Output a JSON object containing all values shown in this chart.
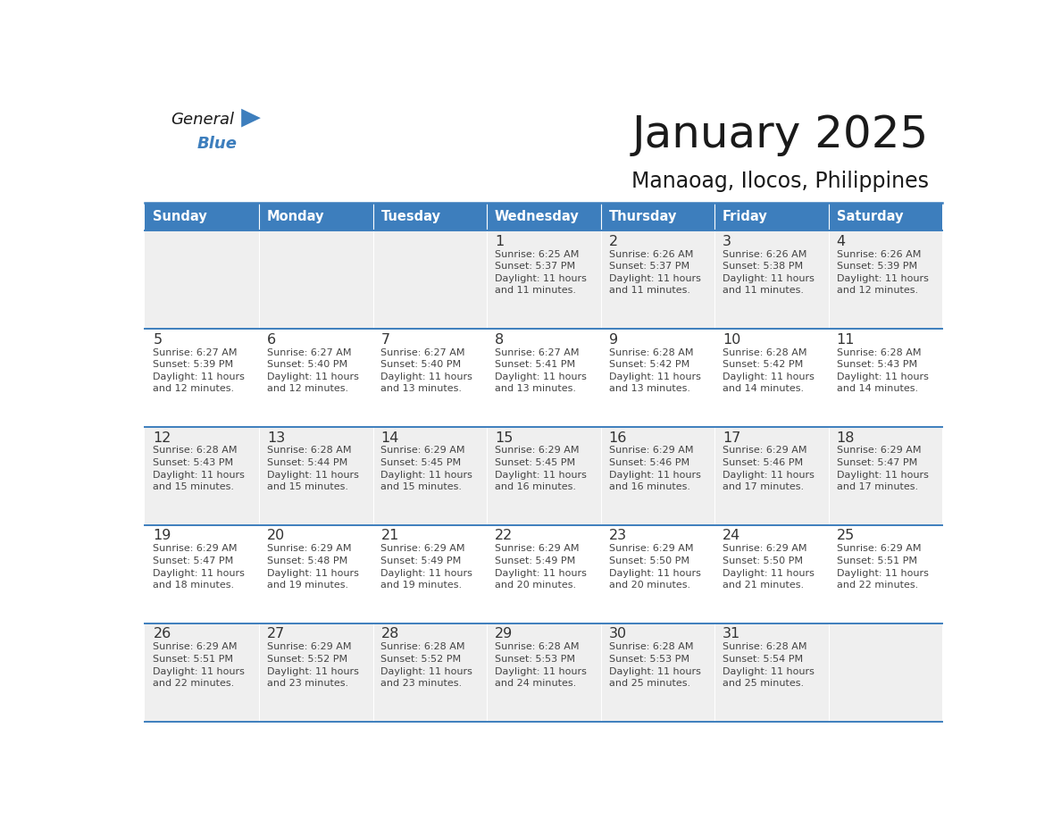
{
  "title": "January 2025",
  "subtitle": "Manaoag, Ilocos, Philippines",
  "header_color": "#3D7EBD",
  "header_text_color": "#FFFFFF",
  "days_of_week": [
    "Sunday",
    "Monday",
    "Tuesday",
    "Wednesday",
    "Thursday",
    "Friday",
    "Saturday"
  ],
  "cell_bg_even": "#EFEFEF",
  "cell_bg_odd": "#FFFFFF",
  "border_color": "#3D7EBD",
  "text_color": "#333333",
  "day_num_color": "#333333",
  "info_text_color": "#444444",
  "calendar": [
    [
      {
        "day": "",
        "info": ""
      },
      {
        "day": "",
        "info": ""
      },
      {
        "day": "",
        "info": ""
      },
      {
        "day": "1",
        "info": "Sunrise: 6:25 AM\nSunset: 5:37 PM\nDaylight: 11 hours\nand 11 minutes."
      },
      {
        "day": "2",
        "info": "Sunrise: 6:26 AM\nSunset: 5:37 PM\nDaylight: 11 hours\nand 11 minutes."
      },
      {
        "day": "3",
        "info": "Sunrise: 6:26 AM\nSunset: 5:38 PM\nDaylight: 11 hours\nand 11 minutes."
      },
      {
        "day": "4",
        "info": "Sunrise: 6:26 AM\nSunset: 5:39 PM\nDaylight: 11 hours\nand 12 minutes."
      }
    ],
    [
      {
        "day": "5",
        "info": "Sunrise: 6:27 AM\nSunset: 5:39 PM\nDaylight: 11 hours\nand 12 minutes."
      },
      {
        "day": "6",
        "info": "Sunrise: 6:27 AM\nSunset: 5:40 PM\nDaylight: 11 hours\nand 12 minutes."
      },
      {
        "day": "7",
        "info": "Sunrise: 6:27 AM\nSunset: 5:40 PM\nDaylight: 11 hours\nand 13 minutes."
      },
      {
        "day": "8",
        "info": "Sunrise: 6:27 AM\nSunset: 5:41 PM\nDaylight: 11 hours\nand 13 minutes."
      },
      {
        "day": "9",
        "info": "Sunrise: 6:28 AM\nSunset: 5:42 PM\nDaylight: 11 hours\nand 13 minutes."
      },
      {
        "day": "10",
        "info": "Sunrise: 6:28 AM\nSunset: 5:42 PM\nDaylight: 11 hours\nand 14 minutes."
      },
      {
        "day": "11",
        "info": "Sunrise: 6:28 AM\nSunset: 5:43 PM\nDaylight: 11 hours\nand 14 minutes."
      }
    ],
    [
      {
        "day": "12",
        "info": "Sunrise: 6:28 AM\nSunset: 5:43 PM\nDaylight: 11 hours\nand 15 minutes."
      },
      {
        "day": "13",
        "info": "Sunrise: 6:28 AM\nSunset: 5:44 PM\nDaylight: 11 hours\nand 15 minutes."
      },
      {
        "day": "14",
        "info": "Sunrise: 6:29 AM\nSunset: 5:45 PM\nDaylight: 11 hours\nand 15 minutes."
      },
      {
        "day": "15",
        "info": "Sunrise: 6:29 AM\nSunset: 5:45 PM\nDaylight: 11 hours\nand 16 minutes."
      },
      {
        "day": "16",
        "info": "Sunrise: 6:29 AM\nSunset: 5:46 PM\nDaylight: 11 hours\nand 16 minutes."
      },
      {
        "day": "17",
        "info": "Sunrise: 6:29 AM\nSunset: 5:46 PM\nDaylight: 11 hours\nand 17 minutes."
      },
      {
        "day": "18",
        "info": "Sunrise: 6:29 AM\nSunset: 5:47 PM\nDaylight: 11 hours\nand 17 minutes."
      }
    ],
    [
      {
        "day": "19",
        "info": "Sunrise: 6:29 AM\nSunset: 5:47 PM\nDaylight: 11 hours\nand 18 minutes."
      },
      {
        "day": "20",
        "info": "Sunrise: 6:29 AM\nSunset: 5:48 PM\nDaylight: 11 hours\nand 19 minutes."
      },
      {
        "day": "21",
        "info": "Sunrise: 6:29 AM\nSunset: 5:49 PM\nDaylight: 11 hours\nand 19 minutes."
      },
      {
        "day": "22",
        "info": "Sunrise: 6:29 AM\nSunset: 5:49 PM\nDaylight: 11 hours\nand 20 minutes."
      },
      {
        "day": "23",
        "info": "Sunrise: 6:29 AM\nSunset: 5:50 PM\nDaylight: 11 hours\nand 20 minutes."
      },
      {
        "day": "24",
        "info": "Sunrise: 6:29 AM\nSunset: 5:50 PM\nDaylight: 11 hours\nand 21 minutes."
      },
      {
        "day": "25",
        "info": "Sunrise: 6:29 AM\nSunset: 5:51 PM\nDaylight: 11 hours\nand 22 minutes."
      }
    ],
    [
      {
        "day": "26",
        "info": "Sunrise: 6:29 AM\nSunset: 5:51 PM\nDaylight: 11 hours\nand 22 minutes."
      },
      {
        "day": "27",
        "info": "Sunrise: 6:29 AM\nSunset: 5:52 PM\nDaylight: 11 hours\nand 23 minutes."
      },
      {
        "day": "28",
        "info": "Sunrise: 6:28 AM\nSunset: 5:52 PM\nDaylight: 11 hours\nand 23 minutes."
      },
      {
        "day": "29",
        "info": "Sunrise: 6:28 AM\nSunset: 5:53 PM\nDaylight: 11 hours\nand 24 minutes."
      },
      {
        "day": "30",
        "info": "Sunrise: 6:28 AM\nSunset: 5:53 PM\nDaylight: 11 hours\nand 25 minutes."
      },
      {
        "day": "31",
        "info": "Sunrise: 6:28 AM\nSunset: 5:54 PM\nDaylight: 11 hours\nand 25 minutes."
      },
      {
        "day": "",
        "info": ""
      }
    ]
  ],
  "logo_general_color": "#1a1a1a",
  "logo_blue_color": "#3D7EBD",
  "logo_triangle_color": "#3D7EBD",
  "fig_width": 11.88,
  "fig_height": 9.18,
  "dpi": 100
}
